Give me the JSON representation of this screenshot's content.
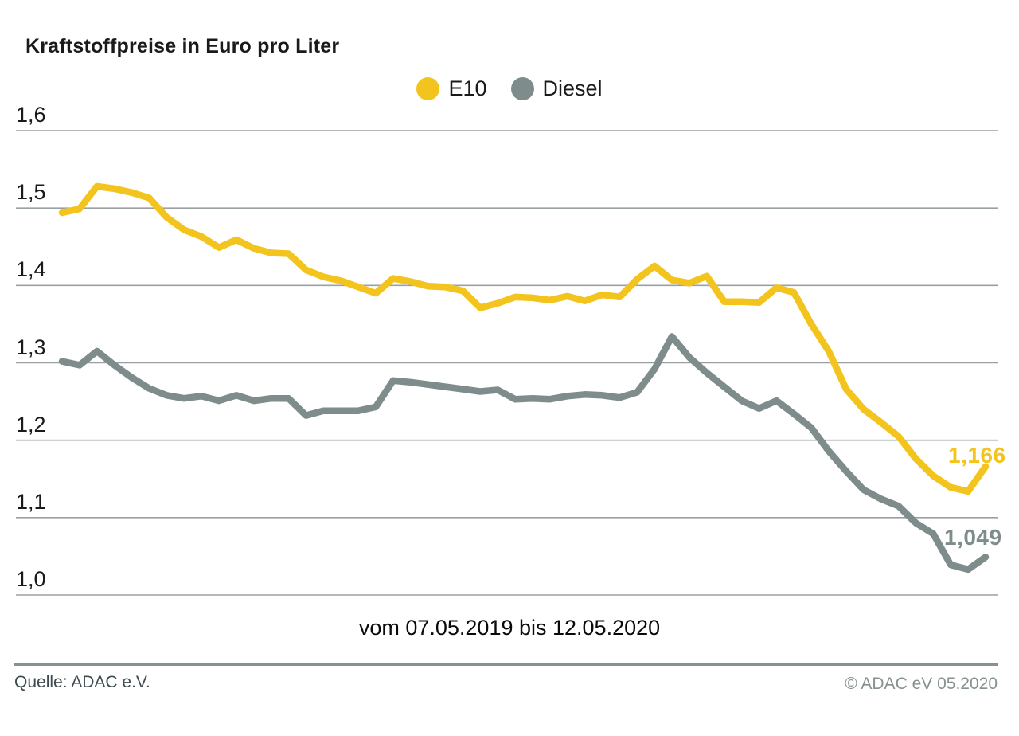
{
  "title": "Kraftstoffpreise in Euro pro Liter",
  "footer": {
    "source": "Quelle: ADAC e.V.",
    "copyright": "© ADAC eV 05.2020"
  },
  "colors": {
    "e10": "#F4C41E",
    "diesel": "#7E8D8B",
    "gridline": "#9BA1A3",
    "footer_rule": "#85928F",
    "title_text": "#1A1A1A"
  },
  "chart_data": {
    "type": "line",
    "title": "Kraftstoffpreise in Euro pro Liter",
    "x_range_label": "vom 07.05.2019 bis 12.05.2020",
    "x_start": "07.05.2019",
    "x_end": "12.05.2020",
    "x_interval": "weekly",
    "xlabel": "",
    "ylabel": "Euro pro Liter",
    "ylim": [
      1.0,
      1.6
    ],
    "grid": "horizontal",
    "legend_position": "top-center",
    "yticks": [
      {
        "value": 1.6,
        "label": "1,6"
      },
      {
        "value": 1.5,
        "label": "1,5"
      },
      {
        "value": 1.4,
        "label": "1,4"
      },
      {
        "value": 1.3,
        "label": "1,3"
      },
      {
        "value": 1.2,
        "label": "1,2"
      },
      {
        "value": 1.1,
        "label": "1,1"
      },
      {
        "value": 1.0,
        "label": "1,0"
      }
    ],
    "series": [
      {
        "name": "E10",
        "color": "#F4C41E",
        "end_label": "1,166",
        "last_value": 1.166,
        "values": [
          1.494,
          1.499,
          1.528,
          1.525,
          1.52,
          1.513,
          1.488,
          1.472,
          1.463,
          1.449,
          1.459,
          1.448,
          1.442,
          1.441,
          1.42,
          1.411,
          1.406,
          1.398,
          1.39,
          1.409,
          1.405,
          1.399,
          1.398,
          1.393,
          1.371,
          1.377,
          1.385,
          1.384,
          1.381,
          1.386,
          1.38,
          1.388,
          1.385,
          1.408,
          1.425,
          1.407,
          1.403,
          1.412,
          1.379,
          1.379,
          1.378,
          1.397,
          1.391,
          1.35,
          1.315,
          1.266,
          1.24,
          1.223,
          1.205,
          1.176,
          1.154,
          1.139,
          1.134,
          1.166
        ]
      },
      {
        "name": "Diesel",
        "color": "#7E8D8B",
        "end_label": "1,049",
        "last_value": 1.049,
        "values": [
          1.302,
          1.297,
          1.315,
          1.297,
          1.281,
          1.267,
          1.258,
          1.254,
          1.257,
          1.251,
          1.258,
          1.251,
          1.254,
          1.254,
          1.232,
          1.238,
          1.238,
          1.238,
          1.243,
          1.277,
          1.275,
          1.272,
          1.269,
          1.266,
          1.263,
          1.265,
          1.253,
          1.254,
          1.253,
          1.257,
          1.259,
          1.258,
          1.255,
          1.262,
          1.292,
          1.334,
          1.307,
          1.287,
          1.269,
          1.251,
          1.241,
          1.251,
          1.234,
          1.216,
          1.186,
          1.16,
          1.136,
          1.124,
          1.115,
          1.093,
          1.079,
          1.039,
          1.033,
          1.049
        ]
      }
    ]
  }
}
